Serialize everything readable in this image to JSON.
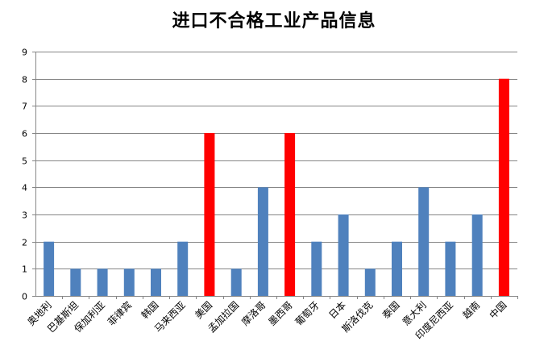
{
  "chart_data": {
    "type": "bar",
    "title": "进口不合格工业产品信息",
    "xlabel": "",
    "ylabel": "",
    "ylim": [
      0,
      9
    ],
    "yticks": [
      0,
      1,
      2,
      3,
      4,
      5,
      6,
      7,
      8,
      9
    ],
    "grid": true,
    "legend": "none",
    "categories": [
      "奥地利",
      "巴基斯坦",
      "保加利亚",
      "菲律宾",
      "韩国",
      "马来西亚",
      "美国",
      "孟加拉国",
      "摩洛哥",
      "墨西哥",
      "葡萄牙",
      "日本",
      "斯洛伐克",
      "泰国",
      "意大利",
      "印度尼西亚",
      "越南",
      "中国"
    ],
    "values": [
      2,
      1,
      1,
      1,
      1,
      2,
      6,
      1,
      4,
      6,
      2,
      3,
      1,
      2,
      4,
      2,
      3,
      8
    ],
    "highlighted": [
      false,
      false,
      false,
      false,
      false,
      false,
      true,
      false,
      false,
      true,
      false,
      false,
      false,
      false,
      false,
      false,
      false,
      true
    ],
    "colors": {
      "default": "#4F81BD",
      "highlight": "#FF0000",
      "grid": "#868686",
      "axis": "#868686"
    }
  }
}
